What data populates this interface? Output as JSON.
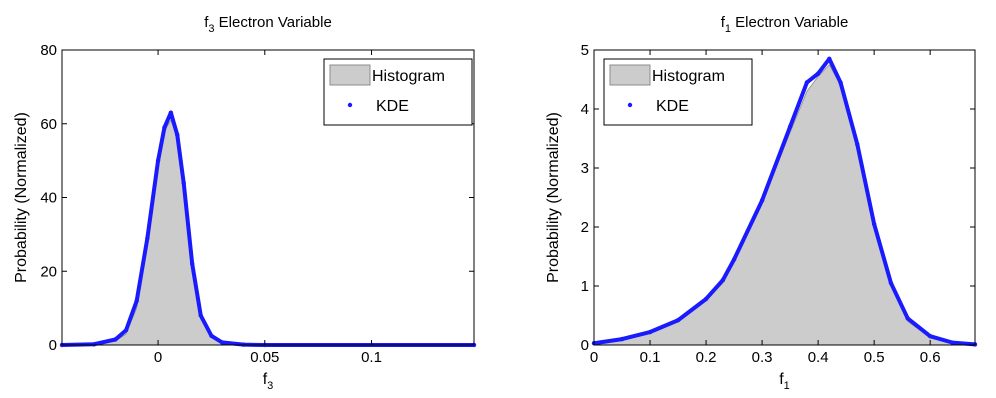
{
  "chart_data": [
    {
      "type": "area",
      "title": "f",
      "title_sub": "3",
      "title_rest": " Electron Variable",
      "xlabel": "f",
      "xlabel_sub": "3",
      "ylabel": "Probability (Normalized)",
      "xlim": [
        -0.045,
        0.148
      ],
      "ylim": [
        0,
        80
      ],
      "xticks": [
        0,
        0.05,
        0.1
      ],
      "xtick_labels": [
        "0",
        "0.05",
        "0.1"
      ],
      "yticks": [
        0,
        20,
        40,
        60,
        80
      ],
      "ytick_labels": [
        "0",
        "20",
        "40",
        "60",
        "80"
      ],
      "legend": {
        "position": "top-right",
        "entries": [
          "Histogram",
          "KDE"
        ]
      },
      "series": [
        {
          "name": "Histogram",
          "x": [
            -0.045,
            -0.03,
            -0.02,
            -0.015,
            -0.01,
            -0.005,
            0.0,
            0.003,
            0.006,
            0.009,
            0.012,
            0.016,
            0.02,
            0.025,
            0.03,
            0.04,
            0.05,
            0.148
          ],
          "values": [
            0,
            0.1,
            1,
            3,
            10,
            27,
            48,
            58,
            61,
            56,
            42,
            20,
            7,
            2,
            0.5,
            0.1,
            0,
            0
          ]
        },
        {
          "name": "KDE",
          "x": [
            -0.045,
            -0.03,
            -0.02,
            -0.015,
            -0.01,
            -0.005,
            0.0,
            0.003,
            0.006,
            0.009,
            0.012,
            0.016,
            0.02,
            0.025,
            0.03,
            0.04,
            0.05,
            0.148
          ],
          "values": [
            0,
            0.2,
            1.5,
            4,
            12,
            29,
            50,
            59,
            63,
            57,
            44,
            22,
            8,
            2.5,
            0.7,
            0.1,
            0,
            0
          ]
        }
      ],
      "colors": {
        "histogram_fill": "#cccccc",
        "histogram_edge": "#8c8c8c",
        "kde": "#1a1aff"
      }
    },
    {
      "type": "area",
      "title": "f",
      "title_sub": "1",
      "title_rest": " Electron Variable",
      "xlabel": "f",
      "xlabel_sub": "1",
      "ylabel": "Probability (Normalized)",
      "xlim": [
        0,
        0.68
      ],
      "ylim": [
        0,
        5
      ],
      "xticks": [
        0,
        0.1,
        0.2,
        0.3,
        0.4,
        0.5,
        0.6
      ],
      "xtick_labels": [
        "0",
        "0.1",
        "0.2",
        "0.3",
        "0.4",
        "0.5",
        "0.6"
      ],
      "yticks": [
        0,
        1,
        2,
        3,
        4,
        5
      ],
      "ytick_labels": [
        "0",
        "1",
        "2",
        "3",
        "4",
        "5"
      ],
      "legend": {
        "position": "top-left",
        "entries": [
          "Histogram",
          "KDE"
        ]
      },
      "series": [
        {
          "name": "Histogram",
          "x": [
            0,
            0.05,
            0.1,
            0.15,
            0.2,
            0.23,
            0.25,
            0.3,
            0.35,
            0.38,
            0.4,
            0.42,
            0.44,
            0.47,
            0.5,
            0.53,
            0.56,
            0.6,
            0.64,
            0.68
          ],
          "values": [
            0.02,
            0.08,
            0.2,
            0.4,
            0.75,
            1.05,
            1.4,
            2.4,
            3.6,
            4.3,
            4.55,
            4.75,
            4.4,
            3.3,
            2.0,
            1.0,
            0.4,
            0.12,
            0.03,
            0
          ]
        },
        {
          "name": "KDE",
          "x": [
            0,
            0.05,
            0.1,
            0.15,
            0.2,
            0.23,
            0.25,
            0.3,
            0.35,
            0.38,
            0.4,
            0.42,
            0.44,
            0.47,
            0.5,
            0.53,
            0.56,
            0.6,
            0.64,
            0.68
          ],
          "values": [
            0.03,
            0.1,
            0.22,
            0.42,
            0.78,
            1.1,
            1.45,
            2.45,
            3.7,
            4.45,
            4.6,
            4.85,
            4.45,
            3.4,
            2.05,
            1.05,
            0.45,
            0.15,
            0.04,
            0.01
          ]
        }
      ],
      "colors": {
        "histogram_fill": "#cccccc",
        "histogram_edge": "#8c8c8c",
        "kde": "#1a1aff"
      }
    }
  ]
}
